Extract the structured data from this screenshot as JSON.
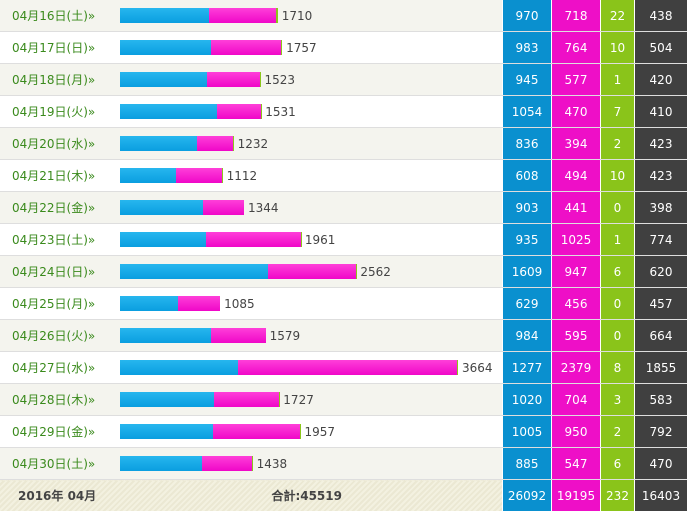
{
  "colors": {
    "pc": "#0a90cf",
    "sp": "#ee0fc7",
    "other": "#8ac41a",
    "unique": "#404040",
    "date_link": "#3a8a1c"
  },
  "bar_scale_max": 3664,
  "rows": [
    {
      "date": "04月16日(土)»",
      "total": "1710",
      "pc": "970",
      "sp": "718",
      "other": "22",
      "unique": "438"
    },
    {
      "date": "04月17日(日)»",
      "total": "1757",
      "pc": "983",
      "sp": "764",
      "other": "10",
      "unique": "504"
    },
    {
      "date": "04月18日(月)»",
      "total": "1523",
      "pc": "945",
      "sp": "577",
      "other": "1",
      "unique": "420"
    },
    {
      "date": "04月19日(火)»",
      "total": "1531",
      "pc": "1054",
      "sp": "470",
      "other": "7",
      "unique": "410"
    },
    {
      "date": "04月20日(水)»",
      "total": "1232",
      "pc": "836",
      "sp": "394",
      "other": "2",
      "unique": "423"
    },
    {
      "date": "04月21日(木)»",
      "total": "1112",
      "pc": "608",
      "sp": "494",
      "other": "10",
      "unique": "423"
    },
    {
      "date": "04月22日(金)»",
      "total": "1344",
      "pc": "903",
      "sp": "441",
      "other": "0",
      "unique": "398"
    },
    {
      "date": "04月23日(土)»",
      "total": "1961",
      "pc": "935",
      "sp": "1025",
      "other": "1",
      "unique": "774"
    },
    {
      "date": "04月24日(日)»",
      "total": "2562",
      "pc": "1609",
      "sp": "947",
      "other": "6",
      "unique": "620"
    },
    {
      "date": "04月25日(月)»",
      "total": "1085",
      "pc": "629",
      "sp": "456",
      "other": "0",
      "unique": "457"
    },
    {
      "date": "04月26日(火)»",
      "total": "1579",
      "pc": "984",
      "sp": "595",
      "other": "0",
      "unique": "664"
    },
    {
      "date": "04月27日(水)»",
      "total": "3664",
      "pc": "1277",
      "sp": "2379",
      "other": "8",
      "unique": "1855"
    },
    {
      "date": "04月28日(木)»",
      "total": "1727",
      "pc": "1020",
      "sp": "704",
      "other": "3",
      "unique": "583"
    },
    {
      "date": "04月29日(金)»",
      "total": "1957",
      "pc": "1005",
      "sp": "950",
      "other": "2",
      "unique": "792"
    },
    {
      "date": "04月30日(土)»",
      "total": "1438",
      "pc": "885",
      "sp": "547",
      "other": "6",
      "unique": "470"
    }
  ],
  "footer": {
    "month": "2016年 04月",
    "total_label": "合計:45519",
    "pc": "26092",
    "sp": "19195",
    "other": "232",
    "unique": "16403"
  }
}
